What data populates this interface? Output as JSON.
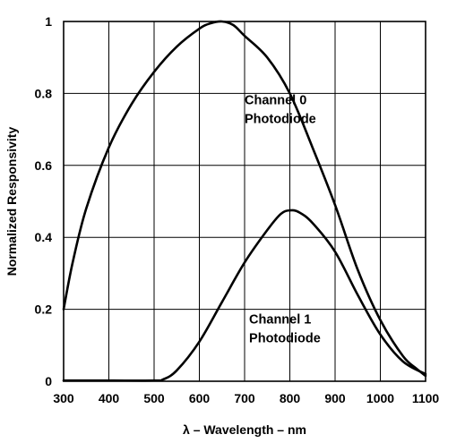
{
  "chart_data": {
    "type": "line",
    "title": "",
    "xlabel": "λ – Wavelength – nm",
    "ylabel": "Normalized Responsivity",
    "xlim": [
      300,
      1100
    ],
    "ylim": [
      0,
      1
    ],
    "xticks": [
      300,
      400,
      500,
      600,
      700,
      800,
      900,
      1000,
      1100
    ],
    "yticks": [
      0,
      0.2,
      0.4,
      0.6,
      0.8,
      1
    ],
    "ytick_labels": [
      "0",
      "0.2",
      "0.4",
      "0.6",
      "0.8",
      "1"
    ],
    "grid": true,
    "legend": "none",
    "series": [
      {
        "name": "Channel 0 Photodiode",
        "x": [
          300,
          320,
          350,
          400,
          450,
          500,
          550,
          600,
          625,
          650,
          675,
          700,
          750,
          800,
          850,
          900,
          950,
          1000,
          1050,
          1080,
          1100
        ],
        "y": [
          0.2,
          0.33,
          0.48,
          0.65,
          0.77,
          0.86,
          0.93,
          0.98,
          0.995,
          1.0,
          0.99,
          0.96,
          0.9,
          0.8,
          0.65,
          0.49,
          0.31,
          0.17,
          0.07,
          0.035,
          0.015
        ]
      },
      {
        "name": "Channel 1 Photodiode",
        "x": [
          300,
          400,
          500,
          520,
          550,
          600,
          650,
          700,
          750,
          780,
          800,
          820,
          850,
          900,
          950,
          1000,
          1050,
          1100
        ],
        "y": [
          0.002,
          0.002,
          0.002,
          0.005,
          0.03,
          0.11,
          0.22,
          0.33,
          0.42,
          0.465,
          0.475,
          0.47,
          0.44,
          0.36,
          0.24,
          0.13,
          0.055,
          0.02
        ]
      }
    ],
    "annotations": [
      {
        "lines": [
          "Channel 0",
          "Photodiode"
        ],
        "x": 700,
        "y": 0.77
      },
      {
        "lines": [
          "Channel 1",
          "Photodiode"
        ],
        "x": 710,
        "y": 0.16
      }
    ]
  }
}
